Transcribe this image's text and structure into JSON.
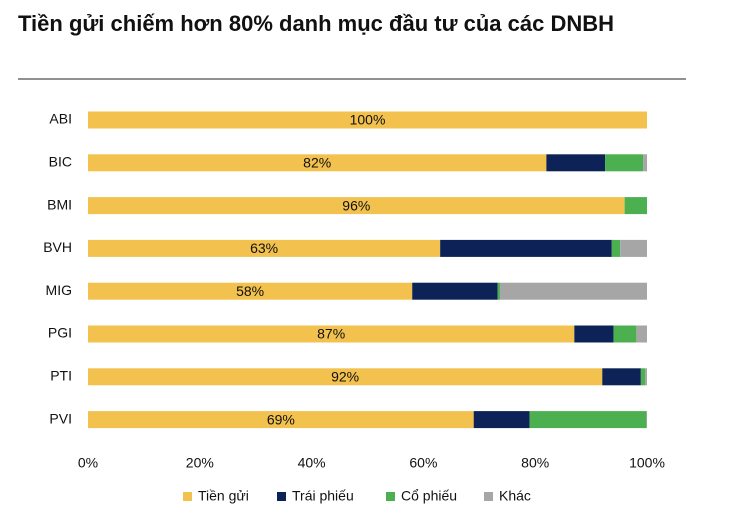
{
  "chart_data": {
    "type": "stacked_barh",
    "title": "Tiền gửi chiếm hơn 80% danh mục đầu tư của các DNBH",
    "categories": [
      "ABI",
      "BIC",
      "BMI",
      "BVH",
      "MIG",
      "PGI",
      "PTI",
      "PVI"
    ],
    "series": [
      {
        "name": "Tiền gửi",
        "color": "#f2c14e",
        "values": [
          100,
          82,
          96,
          63,
          58,
          87,
          92,
          69
        ],
        "value_labels": [
          "100%",
          "82%",
          "96%",
          "63%",
          "58%",
          "87%",
          "92%",
          "69%"
        ]
      },
      {
        "name": "Trái phiếu",
        "color": "#0d2358",
        "values": [
          0,
          10.5,
          0,
          30.7,
          15.3,
          7,
          6.9,
          10
        ]
      },
      {
        "name": "Cổ phiếu",
        "color": "#4caf50",
        "values": [
          0,
          6.8,
          4,
          1.5,
          0.4,
          4.1,
          0.8,
          20.9
        ]
      },
      {
        "name": "Khác",
        "color": "#a6a6a6",
        "values": [
          0,
          0.7,
          0,
          4.8,
          26.3,
          1.9,
          0.3,
          0.1
        ]
      }
    ],
    "xlim": [
      0,
      100
    ],
    "xticks": [
      {
        "value": 0,
        "label": "0%"
      },
      {
        "value": 20,
        "label": "20%"
      },
      {
        "value": 40,
        "label": "40%"
      },
      {
        "value": 60,
        "label": "60%"
      },
      {
        "value": 80,
        "label": "80%"
      },
      {
        "value": 100,
        "label": "100%"
      }
    ]
  }
}
